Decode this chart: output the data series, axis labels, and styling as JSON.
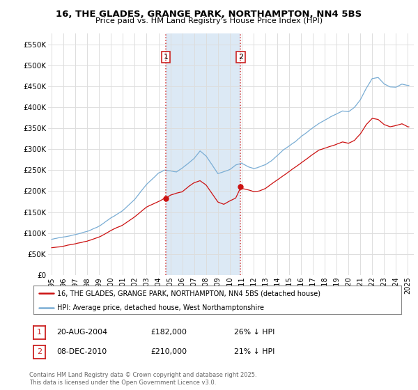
{
  "title": "16, THE GLADES, GRANGE PARK, NORTHAMPTON, NN4 5BS",
  "subtitle": "Price paid vs. HM Land Registry's House Price Index (HPI)",
  "legend_entry1": "16, THE GLADES, GRANGE PARK, NORTHAMPTON, NN4 5BS (detached house)",
  "legend_entry2": "HPI: Average price, detached house, West Northamptonshire",
  "sale1_label": "1",
  "sale1_date": "20-AUG-2004",
  "sale1_price": "£182,000",
  "sale1_hpi": "26% ↓ HPI",
  "sale2_label": "2",
  "sale2_date": "08-DEC-2010",
  "sale2_price": "£210,000",
  "sale2_hpi": "21% ↓ HPI",
  "footer": "Contains HM Land Registry data © Crown copyright and database right 2025.\nThis data is licensed under the Open Government Licence v3.0.",
  "hpi_color": "#7aadd4",
  "price_color": "#cc1111",
  "vline_color": "#cc2222",
  "shade_color": "#dce9f5",
  "background_plot": "#ffffff",
  "background_fig": "#ffffff",
  "grid_color": "#dddddd",
  "sale1_x": 2004.62,
  "sale1_y": 182000,
  "sale2_x": 2010.92,
  "sale2_y": 210000,
  "ylim": [
    0,
    577000
  ],
  "yticks": [
    0,
    50000,
    100000,
    150000,
    200000,
    250000,
    300000,
    350000,
    400000,
    450000,
    500000,
    550000
  ],
  "ytick_labels": [
    "£0",
    "£50K",
    "£100K",
    "£150K",
    "£200K",
    "£250K",
    "£300K",
    "£350K",
    "£400K",
    "£450K",
    "£500K",
    "£550K"
  ],
  "xlim_left": 1994.7,
  "xlim_right": 2025.5,
  "xticks": [
    1995,
    1996,
    1997,
    1998,
    1999,
    2000,
    2001,
    2002,
    2003,
    2004,
    2005,
    2006,
    2007,
    2008,
    2009,
    2010,
    2011,
    2012,
    2013,
    2014,
    2015,
    2016,
    2017,
    2018,
    2019,
    2020,
    2021,
    2022,
    2023,
    2024,
    2025
  ]
}
